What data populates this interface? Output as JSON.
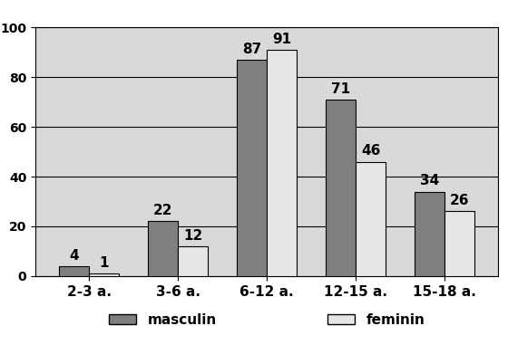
{
  "chart_data": {
    "type": "bar",
    "categories": [
      "2-3 a.",
      "3-6 a.",
      "6-12 a.",
      "12-15 a.",
      "15-18 a."
    ],
    "series": [
      {
        "name": "masculin",
        "color": "#7f7f7f",
        "values": [
          4,
          22,
          87,
          71,
          34
        ]
      },
      {
        "name": "feminin",
        "color": "#e6e6e6",
        "values": [
          1,
          12,
          91,
          46,
          26
        ]
      }
    ],
    "ylim": [
      0,
      100
    ],
    "yticks": [
      0,
      20,
      40,
      60,
      80,
      100
    ],
    "grid": true,
    "data_labels": true,
    "legend": "bottom"
  }
}
